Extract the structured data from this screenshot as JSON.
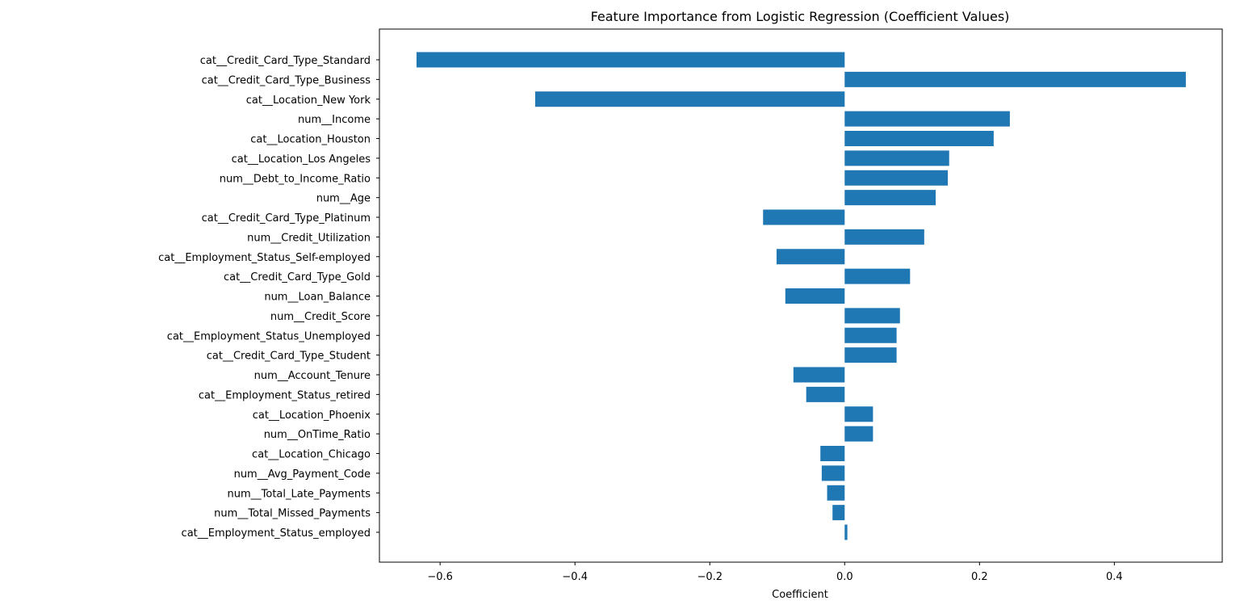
{
  "colors": {
    "bar": "#1f77b4",
    "axis": "#000000",
    "background": "#ffffff"
  },
  "chart_data": {
    "type": "bar",
    "orientation": "horizontal",
    "title": "Feature Importance from Logistic Regression (Coefficient Values)",
    "xlabel": "Coefficient",
    "ylabel": "",
    "xlim": [
      -0.69,
      0.56
    ],
    "xticks": [
      -0.6,
      -0.4,
      -0.2,
      0.0,
      0.2,
      0.4
    ],
    "xtick_labels": [
      "−0.6",
      "−0.4",
      "−0.2",
      "0.0",
      "0.2",
      "0.4"
    ],
    "grid": false,
    "legend": false,
    "categories": [
      "cat__Credit_Card_Type_Standard",
      "cat__Credit_Card_Type_Business",
      "cat__Location_New York",
      "num__Income",
      "cat__Location_Houston",
      "cat__Location_Los Angeles",
      "num__Debt_to_Income_Ratio",
      "num__Age",
      "cat__Credit_Card_Type_Platinum",
      "num__Credit_Utilization",
      "cat__Employment_Status_Self-employed",
      "cat__Credit_Card_Type_Gold",
      "num__Loan_Balance",
      "num__Credit_Score",
      "cat__Employment_Status_Unemployed",
      "cat__Credit_Card_Type_Student",
      "num__Account_Tenure",
      "cat__Employment_Status_retired",
      "cat__Location_Phoenix",
      "num__OnTime_Ratio",
      "cat__Location_Chicago",
      "num__Avg_Payment_Code",
      "num__Total_Late_Payments",
      "num__Total_Missed_Payments",
      "cat__Employment_Status_employed"
    ],
    "values": [
      -0.635,
      0.506,
      -0.459,
      0.245,
      0.221,
      0.155,
      0.153,
      0.135,
      -0.121,
      0.118,
      -0.101,
      0.097,
      -0.088,
      0.082,
      0.077,
      0.077,
      -0.076,
      -0.057,
      0.042,
      0.042,
      -0.036,
      -0.034,
      -0.026,
      -0.018,
      0.004
    ]
  }
}
